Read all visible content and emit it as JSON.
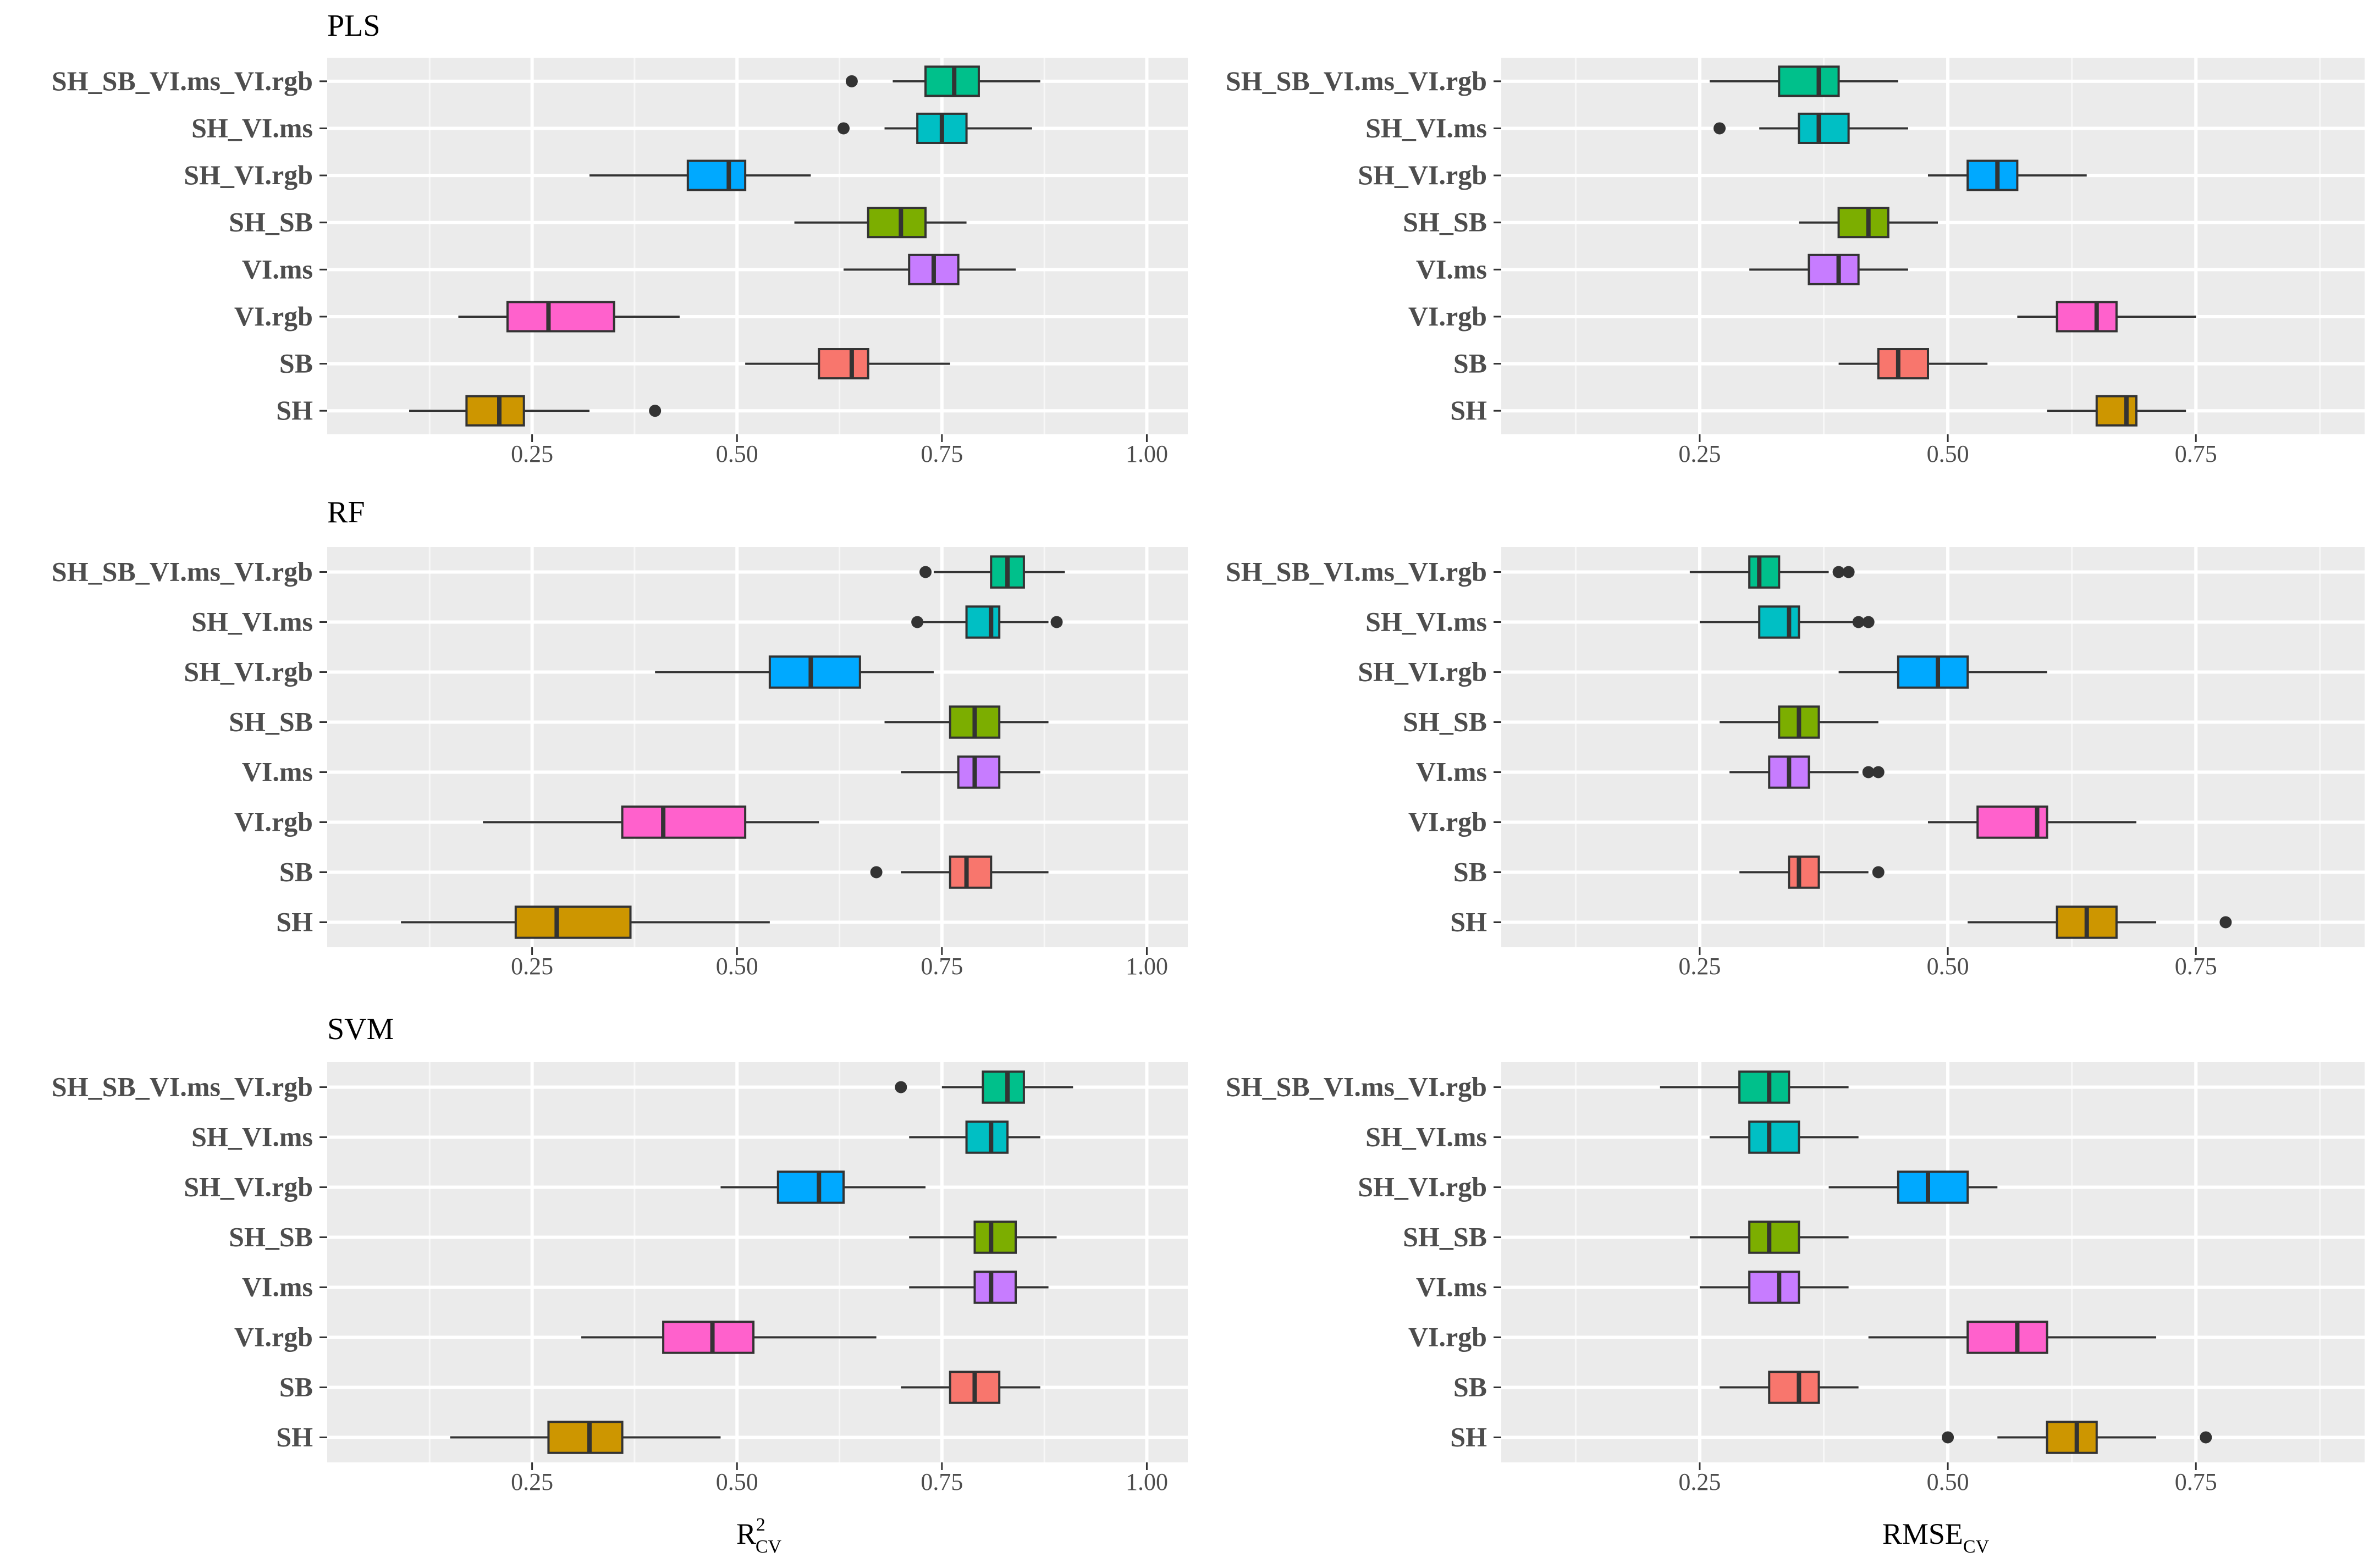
{
  "categories": [
    "SH_SB_VI.ms_VI.rgb",
    "SH_VI.ms",
    "SH_VI.rgb",
    "SH_SB",
    "VI.ms",
    "VI.rgb",
    "SB",
    "SH"
  ],
  "category_colors": [
    "#00C08B",
    "#00BFC4",
    "#00A9FF",
    "#7CAE00",
    "#C77CFF",
    "#FF61CC",
    "#F8766D",
    "#CD9600"
  ],
  "rows": [
    "PLS",
    "RF",
    "SVM"
  ],
  "axes": {
    "r2": {
      "ticks": [
        "0.25",
        "0.50",
        "0.75",
        "1.00"
      ],
      "range": [
        0.0,
        1.05
      ]
    },
    "rmse": {
      "ticks": [
        "0.25",
        "0.50",
        "0.75"
      ],
      "range": [
        0.05,
        0.92
      ]
    }
  },
  "labels": {
    "r2_main": "R",
    "r2_sup": "2",
    "r2_sub": "CV",
    "rmse_main": "RMSE",
    "rmse_sub": "CV"
  },
  "chart_data": [
    {
      "type": "boxplot",
      "title": "PLS",
      "metric": "R2_CV",
      "xlim": [
        0.0,
        1.05
      ],
      "boxes": [
        {
          "category": "SH_SB_VI.ms_VI.rgb",
          "min": 0.69,
          "q1": 0.73,
          "median": 0.765,
          "q3": 0.795,
          "max": 0.87,
          "outliers": [
            0.64
          ]
        },
        {
          "category": "SH_VI.ms",
          "min": 0.68,
          "q1": 0.72,
          "median": 0.75,
          "q3": 0.78,
          "max": 0.86,
          "outliers": [
            0.63
          ]
        },
        {
          "category": "SH_VI.rgb",
          "min": 0.32,
          "q1": 0.44,
          "median": 0.49,
          "q3": 0.51,
          "max": 0.59,
          "outliers": []
        },
        {
          "category": "SH_SB",
          "min": 0.57,
          "q1": 0.66,
          "median": 0.7,
          "q3": 0.73,
          "max": 0.78,
          "outliers": []
        },
        {
          "category": "VI.ms",
          "min": 0.63,
          "q1": 0.71,
          "median": 0.74,
          "q3": 0.77,
          "max": 0.84,
          "outliers": []
        },
        {
          "category": "VI.rgb",
          "min": 0.16,
          "q1": 0.22,
          "median": 0.27,
          "q3": 0.35,
          "max": 0.43,
          "outliers": []
        },
        {
          "category": "SB",
          "min": 0.51,
          "q1": 0.6,
          "median": 0.64,
          "q3": 0.66,
          "max": 0.76,
          "outliers": []
        },
        {
          "category": "SH",
          "min": 0.1,
          "q1": 0.17,
          "median": 0.21,
          "q3": 0.24,
          "max": 0.32,
          "outliers": [
            0.4
          ]
        }
      ]
    },
    {
      "type": "boxplot",
      "title": "",
      "metric": "RMSE_CV",
      "xlim": [
        0.05,
        0.92
      ],
      "boxes": [
        {
          "category": "SH_SB_VI.ms_VI.rgb",
          "min": 0.26,
          "q1": 0.33,
          "median": 0.37,
          "q3": 0.39,
          "max": 0.45,
          "outliers": []
        },
        {
          "category": "SH_VI.ms",
          "min": 0.31,
          "q1": 0.35,
          "median": 0.37,
          "q3": 0.4,
          "max": 0.46,
          "outliers": [
            0.27
          ]
        },
        {
          "category": "SH_VI.rgb",
          "min": 0.48,
          "q1": 0.52,
          "median": 0.55,
          "q3": 0.57,
          "max": 0.64,
          "outliers": []
        },
        {
          "category": "SH_SB",
          "min": 0.35,
          "q1": 0.39,
          "median": 0.42,
          "q3": 0.44,
          "max": 0.49,
          "outliers": []
        },
        {
          "category": "VI.ms",
          "min": 0.3,
          "q1": 0.36,
          "median": 0.39,
          "q3": 0.41,
          "max": 0.46,
          "outliers": []
        },
        {
          "category": "VI.rgb",
          "min": 0.57,
          "q1": 0.61,
          "median": 0.65,
          "q3": 0.67,
          "max": 0.75,
          "outliers": []
        },
        {
          "category": "SB",
          "min": 0.39,
          "q1": 0.43,
          "median": 0.45,
          "q3": 0.48,
          "max": 0.54,
          "outliers": []
        },
        {
          "category": "SH",
          "min": 0.6,
          "q1": 0.65,
          "median": 0.68,
          "q3": 0.69,
          "max": 0.74,
          "outliers": []
        }
      ]
    },
    {
      "type": "boxplot",
      "title": "RF",
      "metric": "R2_CV",
      "xlim": [
        0.0,
        1.05
      ],
      "boxes": [
        {
          "category": "SH_SB_VI.ms_VI.rgb",
          "min": 0.74,
          "q1": 0.81,
          "median": 0.83,
          "q3": 0.85,
          "max": 0.9,
          "outliers": [
            0.73
          ]
        },
        {
          "category": "SH_VI.ms",
          "min": 0.72,
          "q1": 0.78,
          "median": 0.81,
          "q3": 0.82,
          "max": 0.88,
          "outliers": [
            0.72,
            0.89
          ]
        },
        {
          "category": "SH_VI.rgb",
          "min": 0.4,
          "q1": 0.54,
          "median": 0.59,
          "q3": 0.65,
          "max": 0.74,
          "outliers": []
        },
        {
          "category": "SH_SB",
          "min": 0.68,
          "q1": 0.76,
          "median": 0.79,
          "q3": 0.82,
          "max": 0.88,
          "outliers": []
        },
        {
          "category": "VI.ms",
          "min": 0.7,
          "q1": 0.77,
          "median": 0.79,
          "q3": 0.82,
          "max": 0.87,
          "outliers": []
        },
        {
          "category": "VI.rgb",
          "min": 0.19,
          "q1": 0.36,
          "median": 0.41,
          "q3": 0.51,
          "max": 0.6,
          "outliers": []
        },
        {
          "category": "SB",
          "min": 0.7,
          "q1": 0.76,
          "median": 0.78,
          "q3": 0.81,
          "max": 0.88,
          "outliers": [
            0.67
          ]
        },
        {
          "category": "SH",
          "min": 0.09,
          "q1": 0.23,
          "median": 0.28,
          "q3": 0.37,
          "max": 0.54,
          "outliers": []
        }
      ]
    },
    {
      "type": "boxplot",
      "title": "",
      "metric": "RMSE_CV",
      "xlim": [
        0.05,
        0.92
      ],
      "boxes": [
        {
          "category": "SH_SB_VI.ms_VI.rgb",
          "min": 0.24,
          "q1": 0.3,
          "median": 0.31,
          "q3": 0.33,
          "max": 0.38,
          "outliers": [
            0.39,
            0.4
          ]
        },
        {
          "category": "SH_VI.ms",
          "min": 0.25,
          "q1": 0.31,
          "median": 0.34,
          "q3": 0.35,
          "max": 0.41,
          "outliers": [
            0.41,
            0.42
          ]
        },
        {
          "category": "SH_VI.rgb",
          "min": 0.39,
          "q1": 0.45,
          "median": 0.49,
          "q3": 0.52,
          "max": 0.6,
          "outliers": []
        },
        {
          "category": "SH_SB",
          "min": 0.27,
          "q1": 0.33,
          "median": 0.35,
          "q3": 0.37,
          "max": 0.43,
          "outliers": []
        },
        {
          "category": "VI.ms",
          "min": 0.28,
          "q1": 0.32,
          "median": 0.34,
          "q3": 0.36,
          "max": 0.41,
          "outliers": [
            0.42,
            0.43
          ]
        },
        {
          "category": "VI.rgb",
          "min": 0.48,
          "q1": 0.53,
          "median": 0.59,
          "q3": 0.6,
          "max": 0.69,
          "outliers": []
        },
        {
          "category": "SB",
          "min": 0.29,
          "q1": 0.34,
          "median": 0.35,
          "q3": 0.37,
          "max": 0.42,
          "outliers": [
            0.43
          ]
        },
        {
          "category": "SH",
          "min": 0.52,
          "q1": 0.61,
          "median": 0.64,
          "q3": 0.67,
          "max": 0.71,
          "outliers": [
            0.78
          ]
        }
      ]
    },
    {
      "type": "boxplot",
      "title": "SVM",
      "metric": "R2_CV",
      "xlim": [
        0.0,
        1.05
      ],
      "boxes": [
        {
          "category": "SH_SB_VI.ms_VI.rgb",
          "min": 0.75,
          "q1": 0.8,
          "median": 0.83,
          "q3": 0.85,
          "max": 0.91,
          "outliers": [
            0.7
          ]
        },
        {
          "category": "SH_VI.ms",
          "min": 0.71,
          "q1": 0.78,
          "median": 0.81,
          "q3": 0.83,
          "max": 0.87,
          "outliers": []
        },
        {
          "category": "SH_VI.rgb",
          "min": 0.48,
          "q1": 0.55,
          "median": 0.6,
          "q3": 0.63,
          "max": 0.73,
          "outliers": []
        },
        {
          "category": "SH_SB",
          "min": 0.71,
          "q1": 0.79,
          "median": 0.81,
          "q3": 0.84,
          "max": 0.89,
          "outliers": []
        },
        {
          "category": "VI.ms",
          "min": 0.71,
          "q1": 0.79,
          "median": 0.81,
          "q3": 0.84,
          "max": 0.88,
          "outliers": []
        },
        {
          "category": "VI.rgb",
          "min": 0.31,
          "q1": 0.41,
          "median": 0.47,
          "q3": 0.52,
          "max": 0.67,
          "outliers": []
        },
        {
          "category": "SB",
          "min": 0.7,
          "q1": 0.76,
          "median": 0.79,
          "q3": 0.82,
          "max": 0.87,
          "outliers": []
        },
        {
          "category": "SH",
          "min": 0.15,
          "q1": 0.27,
          "median": 0.32,
          "q3": 0.36,
          "max": 0.48,
          "outliers": []
        }
      ]
    },
    {
      "type": "boxplot",
      "title": "",
      "metric": "RMSE_CV",
      "xlim": [
        0.05,
        0.92
      ],
      "boxes": [
        {
          "category": "SH_SB_VI.ms_VI.rgb",
          "min": 0.21,
          "q1": 0.29,
          "median": 0.32,
          "q3": 0.34,
          "max": 0.4,
          "outliers": []
        },
        {
          "category": "SH_VI.ms",
          "min": 0.26,
          "q1": 0.3,
          "median": 0.32,
          "q3": 0.35,
          "max": 0.41,
          "outliers": []
        },
        {
          "category": "SH_VI.rgb",
          "min": 0.38,
          "q1": 0.45,
          "median": 0.48,
          "q3": 0.52,
          "max": 0.55,
          "outliers": []
        },
        {
          "category": "SH_SB",
          "min": 0.24,
          "q1": 0.3,
          "median": 0.32,
          "q3": 0.35,
          "max": 0.4,
          "outliers": []
        },
        {
          "category": "VI.ms",
          "min": 0.25,
          "q1": 0.3,
          "median": 0.33,
          "q3": 0.35,
          "max": 0.4,
          "outliers": []
        },
        {
          "category": "VI.rgb",
          "min": 0.42,
          "q1": 0.52,
          "median": 0.57,
          "q3": 0.6,
          "max": 0.71,
          "outliers": []
        },
        {
          "category": "SB",
          "min": 0.27,
          "q1": 0.32,
          "median": 0.35,
          "q3": 0.37,
          "max": 0.41,
          "outliers": []
        },
        {
          "category": "SH",
          "min": 0.55,
          "q1": 0.6,
          "median": 0.63,
          "q3": 0.65,
          "max": 0.71,
          "outliers": [
            0.5,
            0.76
          ]
        }
      ]
    }
  ]
}
